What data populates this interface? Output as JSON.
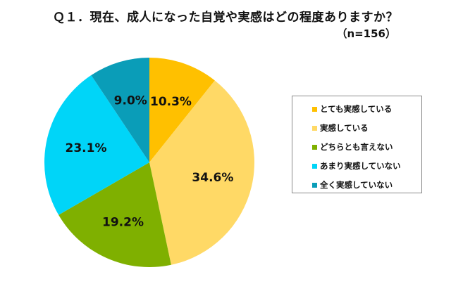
{
  "title": "Ｑ１．現在、成人になった自覚や実感はどの程度ありますか？",
  "sample_size": "（n=156）",
  "legend": {
    "items": [
      {
        "label": "とても実感している",
        "color": "#FFC000"
      },
      {
        "label": "実感している",
        "color": "#FFD966"
      },
      {
        "label": "どちらとも言えない",
        "color": "#7FB000"
      },
      {
        "label": "あまり実感していない",
        "color": "#00D5F8"
      },
      {
        "label": "全く実感していない",
        "color": "#0A9DB8"
      }
    ]
  },
  "chart_data": {
    "type": "pie",
    "title": "Ｑ１．現在、成人になった自覚や実感はどの程度ありますか？",
    "subtitle": "（n=156）",
    "categories": [
      "とても実感している",
      "実感している",
      "どちらとも言えない",
      "あまり実感していない",
      "全く実感していない"
    ],
    "values": [
      10.3,
      34.6,
      19.2,
      23.1,
      9.0
    ],
    "value_labels": [
      "10.3%",
      "34.6%",
      "19.2%",
      "23.1%",
      "9.0%"
    ],
    "colors": [
      "#FFC000",
      "#FFD966",
      "#7FB000",
      "#00D5F8",
      "#0A9DB8"
    ],
    "start_angle": "12 o'clock, clockwise",
    "legend_position": "right"
  }
}
